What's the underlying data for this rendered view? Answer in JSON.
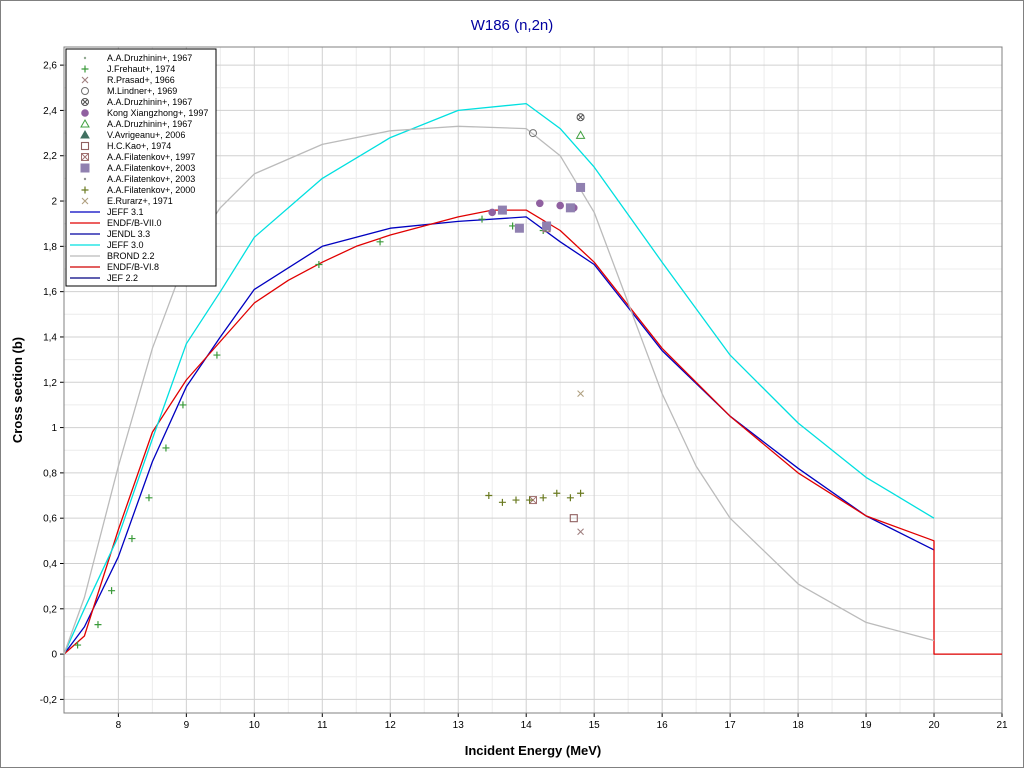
{
  "chart_data": {
    "type": "scatter",
    "title": "W186 (n,2n)",
    "xlabel": "Incident Energy (MeV)",
    "ylabel": "Cross section (b)",
    "xlim": [
      7.2,
      21
    ],
    "ylim": [
      -0.26,
      2.68
    ],
    "grid": true,
    "legend_position": "top-left",
    "x_ticks": [
      8,
      9,
      10,
      11,
      12,
      13,
      14,
      15,
      16,
      17,
      18,
      19,
      20,
      21
    ],
    "x_tick_labels": [
      "8",
      "9",
      "10",
      "11",
      "12",
      "13",
      "14",
      "15",
      "16",
      "17",
      "18",
      "19",
      "20",
      "21"
    ],
    "y_ticks": [
      -0.2,
      0,
      0.2,
      0.4,
      0.6,
      0.8,
      1,
      1.2,
      1.4,
      1.6,
      1.8,
      2,
      2.2,
      2.4,
      2.6
    ],
    "y_tick_labels": [
      "-0,2",
      "0",
      "0,2",
      "0,4",
      "0,6",
      "0,8",
      "1",
      "1,2",
      "1,4",
      "1,6",
      "1,8",
      "2",
      "2,2",
      "2,4",
      "2,6"
    ],
    "series": [
      {
        "name": "A.A.Druzhinin+, 1967",
        "kind": "points",
        "marker": "dot",
        "color": "#90a890",
        "points": []
      },
      {
        "name": "J.Frehaut+, 1974",
        "kind": "points",
        "marker": "plus",
        "color": "#3a9a3a",
        "points": [
          [
            7.4,
            0.04
          ],
          [
            7.7,
            0.13
          ],
          [
            7.9,
            0.28
          ],
          [
            8.2,
            0.51
          ],
          [
            8.45,
            0.69
          ],
          [
            8.7,
            0.91
          ],
          [
            8.95,
            1.1
          ],
          [
            9.45,
            1.32
          ],
          [
            10.95,
            1.72
          ],
          [
            11.85,
            1.82
          ],
          [
            13.35,
            1.92
          ],
          [
            13.8,
            1.89
          ],
          [
            14.25,
            1.87
          ]
        ]
      },
      {
        "name": "R.Prasad+, 1966",
        "kind": "points",
        "marker": "x",
        "color": "#a08080",
        "points": [
          [
            14.8,
            0.54
          ]
        ]
      },
      {
        "name": "M.Lindner+, 1969",
        "kind": "points",
        "marker": "circle",
        "color": "#707070",
        "points": [
          [
            14.1,
            2.3
          ]
        ]
      },
      {
        "name": "A.A.Druzhinin+, 1967",
        "kind": "points",
        "marker": "circlex",
        "color": "#505050",
        "points": [
          [
            14.8,
            2.37
          ]
        ]
      },
      {
        "name": "Kong Xiangzhong+, 1997",
        "kind": "points",
        "marker": "filled-circle",
        "color": "#9060a0",
        "points": [
          [
            13.5,
            1.95
          ],
          [
            14.2,
            1.99
          ],
          [
            14.5,
            1.98
          ],
          [
            14.7,
            1.97
          ]
        ]
      },
      {
        "name": "A.A.Druzhinin+, 1967",
        "kind": "points",
        "marker": "triangle",
        "color": "#40a040",
        "points": [
          [
            14.8,
            2.29
          ]
        ]
      },
      {
        "name": "V.Avrigeanu+, 2006",
        "kind": "points",
        "marker": "filled-triangle",
        "color": "#407060",
        "points": []
      },
      {
        "name": "H.C.Kao+, 1974",
        "kind": "points",
        "marker": "square",
        "color": "#906060",
        "points": [
          [
            14.7,
            0.6
          ]
        ]
      },
      {
        "name": "A.A.Filatenkov+, 1997",
        "kind": "points",
        "marker": "square-x",
        "color": "#a07070",
        "points": [
          [
            14.1,
            0.68
          ],
          [
            14.3,
            1.88
          ]
        ]
      },
      {
        "name": "A.A.Filatenkov+, 2003",
        "kind": "points",
        "marker": "filled-square",
        "color": "#9080b0",
        "points": [
          [
            13.65,
            1.96
          ],
          [
            13.9,
            1.88
          ],
          [
            14.3,
            1.89
          ],
          [
            14.65,
            1.97
          ],
          [
            14.8,
            2.06
          ]
        ]
      },
      {
        "name": "A.A.Filatenkov+, 2003",
        "kind": "points",
        "marker": "dot",
        "color": "#909090",
        "points": []
      },
      {
        "name": "A.A.Filatenkov+, 2000",
        "kind": "points",
        "marker": "plus",
        "color": "#6a7a20",
        "points": [
          [
            13.45,
            0.7
          ],
          [
            13.65,
            0.67
          ],
          [
            13.85,
            0.68
          ],
          [
            14.05,
            0.68
          ],
          [
            14.25,
            0.69
          ],
          [
            14.45,
            0.71
          ],
          [
            14.65,
            0.69
          ],
          [
            14.8,
            0.71
          ]
        ]
      },
      {
        "name": "E.Rurarz+, 1971",
        "kind": "points",
        "marker": "x",
        "color": "#b0a080",
        "points": [
          [
            14.8,
            1.15
          ]
        ]
      },
      {
        "name": "JEFF 3.1",
        "kind": "line",
        "color": "#0000c0",
        "points": [
          [
            7.2,
            0
          ],
          [
            7.5,
            0.12
          ],
          [
            8,
            0.43
          ],
          [
            8.5,
            0.85
          ],
          [
            9,
            1.18
          ],
          [
            9.5,
            1.4
          ],
          [
            10,
            1.61
          ],
          [
            11,
            1.8
          ],
          [
            12,
            1.88
          ],
          [
            13,
            1.91
          ],
          [
            14,
            1.93
          ],
          [
            14.5,
            1.82
          ],
          [
            15,
            1.72
          ],
          [
            16,
            1.34
          ],
          [
            17,
            1.05
          ],
          [
            18,
            0.82
          ],
          [
            19,
            0.61
          ],
          [
            20,
            0.46
          ]
        ]
      },
      {
        "name": "ENDF/B-VII.0",
        "kind": "line",
        "color": "#e00000",
        "points": [
          [
            7.2,
            0
          ],
          [
            7.5,
            0.08
          ],
          [
            8,
            0.55
          ],
          [
            8.5,
            0.98
          ],
          [
            9,
            1.21
          ],
          [
            9.5,
            1.38
          ],
          [
            10,
            1.55
          ],
          [
            10.5,
            1.65
          ],
          [
            11,
            1.73
          ],
          [
            11.5,
            1.8
          ],
          [
            12,
            1.85
          ],
          [
            13,
            1.93
          ],
          [
            13.5,
            1.96
          ],
          [
            14,
            1.96
          ],
          [
            14.5,
            1.87
          ],
          [
            15,
            1.73
          ],
          [
            16,
            1.35
          ],
          [
            17,
            1.05
          ],
          [
            18,
            0.8
          ],
          [
            19,
            0.61
          ],
          [
            20,
            0.5
          ],
          [
            20,
            0
          ],
          [
            21,
            0
          ]
        ]
      },
      {
        "name": "JENDL 3.3",
        "kind": "line",
        "color": "#0000a0",
        "points": []
      },
      {
        "name": "JEFF 3.0",
        "kind": "line",
        "color": "#00e0e0",
        "points": [
          [
            7.2,
            0
          ],
          [
            7.5,
            0.2
          ],
          [
            8,
            0.52
          ],
          [
            8.5,
            0.95
          ],
          [
            9,
            1.37
          ],
          [
            9.5,
            1.6
          ],
          [
            10,
            1.84
          ],
          [
            11,
            2.1
          ],
          [
            12,
            2.28
          ],
          [
            13,
            2.4
          ],
          [
            14,
            2.43
          ],
          [
            14.5,
            2.32
          ],
          [
            15,
            2.15
          ],
          [
            16,
            1.73
          ],
          [
            17,
            1.32
          ],
          [
            18,
            1.02
          ],
          [
            19,
            0.78
          ],
          [
            20,
            0.6
          ]
        ]
      },
      {
        "name": "BROND 2.2",
        "kind": "line",
        "color": "#bbbbbb",
        "points": [
          [
            7.2,
            0
          ],
          [
            7.5,
            0.25
          ],
          [
            8,
            0.83
          ],
          [
            8.5,
            1.35
          ],
          [
            9,
            1.75
          ],
          [
            9.5,
            1.97
          ],
          [
            10,
            2.12
          ],
          [
            11,
            2.25
          ],
          [
            12,
            2.31
          ],
          [
            13,
            2.33
          ],
          [
            14,
            2.32
          ],
          [
            14.5,
            2.2
          ],
          [
            15,
            1.95
          ],
          [
            15.5,
            1.55
          ],
          [
            16,
            1.15
          ],
          [
            16.5,
            0.83
          ],
          [
            17,
            0.6
          ],
          [
            18,
            0.31
          ],
          [
            19,
            0.14
          ],
          [
            20,
            0.06
          ]
        ]
      },
      {
        "name": "ENDF/B-VI.8",
        "kind": "line",
        "color": "#d00000",
        "points": []
      },
      {
        "name": "JEF 2.2",
        "kind": "line",
        "color": "#000080",
        "points": []
      }
    ]
  }
}
